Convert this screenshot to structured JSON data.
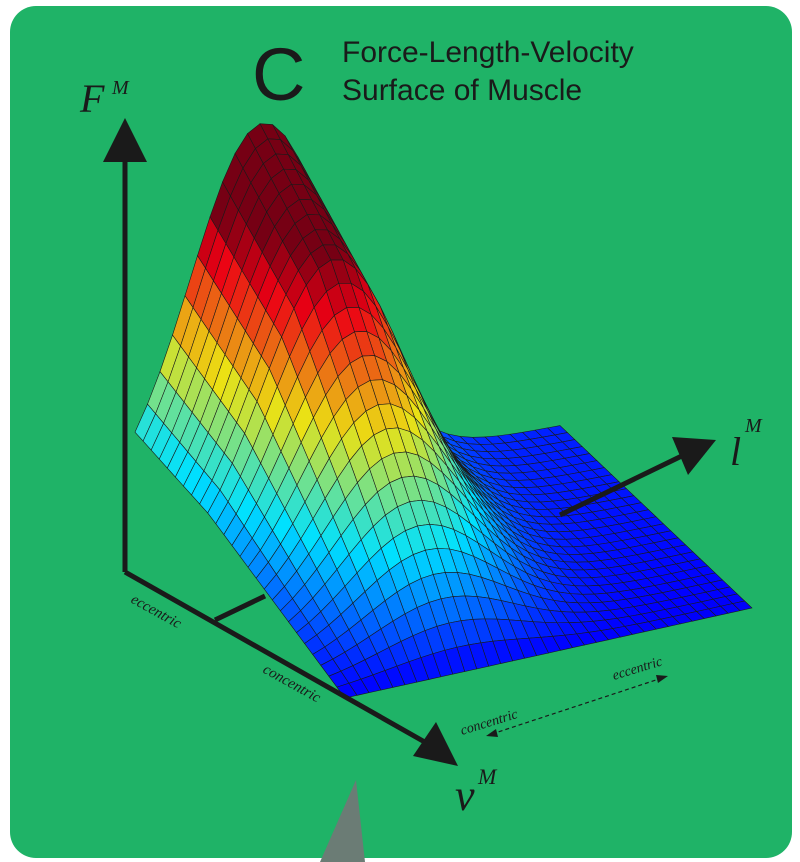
{
  "panel": {
    "letter": "C",
    "title": [
      "Force-Length-Velocity",
      "Surface of Muscle"
    ]
  },
  "axes": {
    "force": {
      "symbol": "F",
      "superscript": "M"
    },
    "length": {
      "symbol": "l",
      "superscript": "M"
    },
    "velocity": {
      "symbol": "v",
      "superscript": "M"
    }
  },
  "annotations": {
    "left_eccentric": "eccentric",
    "left_concentric": "concentric",
    "right_concentric": "concentric",
    "right_eccentric": "eccentric"
  }
}
